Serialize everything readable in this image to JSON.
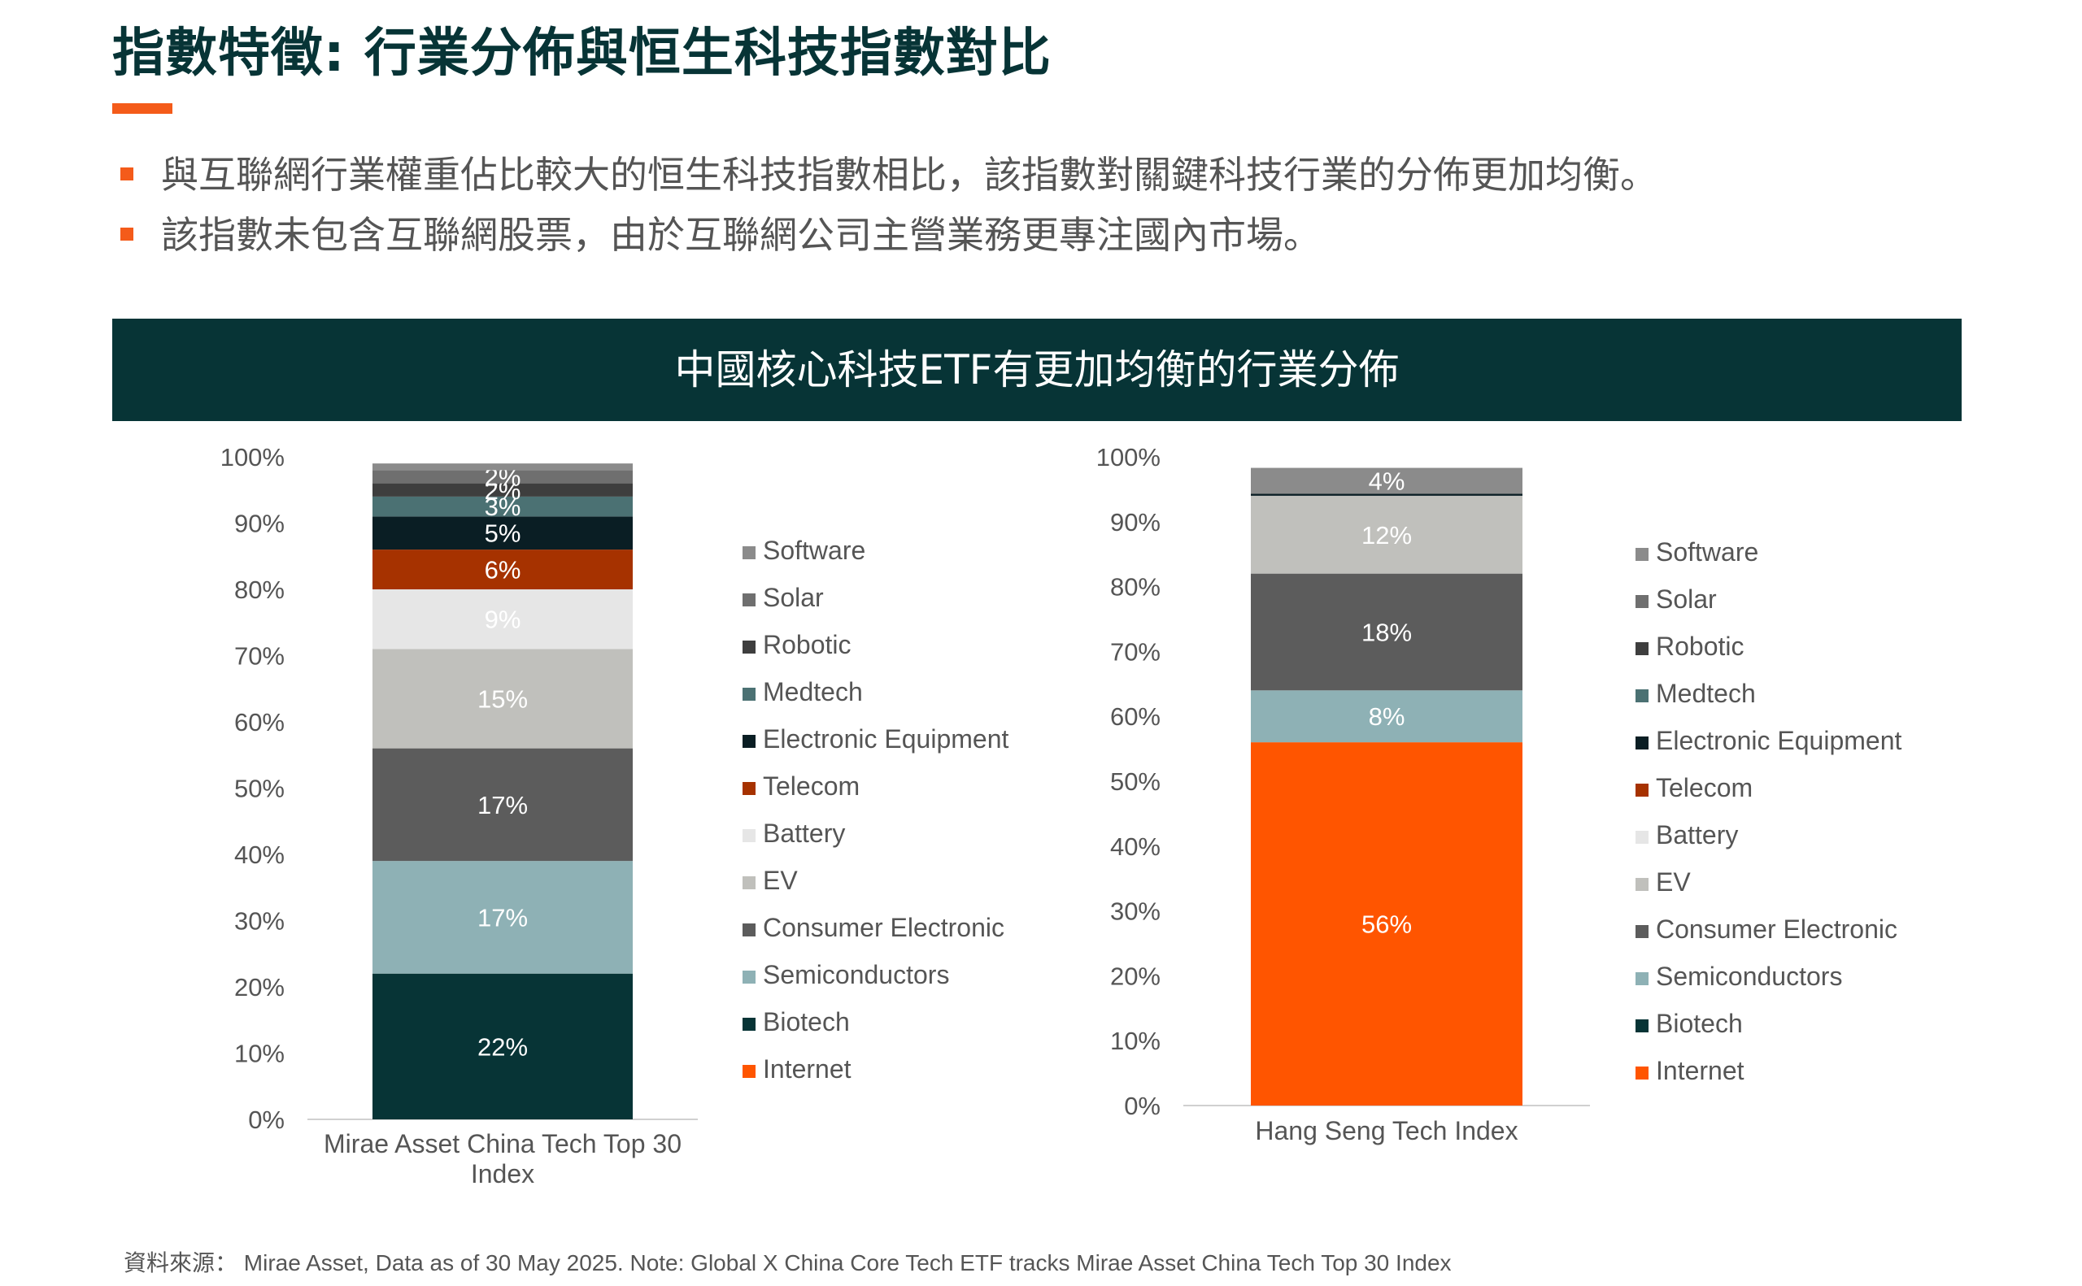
{
  "page": {
    "title": "指數特徵: 行業分佈與恒生科技指數對比",
    "bullets": [
      "與互聯網行業權重佔比較大的恒生科技指數相比，該指數對關鍵科技行業的分佈更加均衡。",
      "該指數未包含互聯網股票，由於互聯網公司主營業務更專注國內市場。"
    ],
    "banner": "中國核心科技ETF有更加均衡的行業分佈",
    "source": "資料來源： Mirae Asset, Data as of  30 May 2025. Note: Global X China Core Tech ETF tracks Mirae Asset China Tech Top 30 Index"
  },
  "colors": {
    "accent": "#f45b1a",
    "banner_bg": "#073436"
  },
  "chart_data": [
    {
      "type": "bar",
      "stacked": true,
      "categories": [
        "Mirae Asset China Tech Top 30 Index"
      ],
      "ylim": [
        0,
        100
      ],
      "y_ticks": [
        "0%",
        "10%",
        "20%",
        "30%",
        "40%",
        "50%",
        "60%",
        "70%",
        "80%",
        "90%",
        "100%"
      ],
      "series": [
        {
          "name": "Biotech",
          "values": [
            22
          ],
          "label": "22%",
          "color": "#073436"
        },
        {
          "name": "Semiconductors",
          "values": [
            17
          ],
          "label": "17%",
          "color": "#8eb1b5"
        },
        {
          "name": "Consumer Electronic",
          "values": [
            17
          ],
          "label": "17%",
          "color": "#5c5c5c"
        },
        {
          "name": "EV",
          "values": [
            15
          ],
          "label": "15%",
          "color": "#c0c0bc"
        },
        {
          "name": "Battery",
          "values": [
            9
          ],
          "label": "9%",
          "color": "#e6e6e6"
        },
        {
          "name": "Telecom",
          "values": [
            6
          ],
          "label": "6%",
          "color": "#a63200"
        },
        {
          "name": "Electronic Equipment",
          "values": [
            5
          ],
          "label": "5%",
          "color": "#0a1e24"
        },
        {
          "name": "Medtech",
          "values": [
            3
          ],
          "label": "3%",
          "color": "#4b7173"
        },
        {
          "name": "Robotic",
          "values": [
            2
          ],
          "label": "2%",
          "color": "#3e3e3e"
        },
        {
          "name": "Solar",
          "values": [
            2
          ],
          "label": "2%",
          "color": "#6f6f6f"
        },
        {
          "name": "Software",
          "values": [
            1
          ],
          "label": "",
          "color": "#8b8b8b"
        }
      ],
      "legend": [
        "Software",
        "Solar",
        "Robotic",
        "Medtech",
        "Electronic Equipment",
        "Telecom",
        "Battery",
        "EV",
        "Consumer Electronic",
        "Semiconductors",
        "Biotech",
        "Internet"
      ],
      "legend_position": "right"
    },
    {
      "type": "bar",
      "stacked": true,
      "categories": [
        "Hang Seng Tech Index"
      ],
      "ylim": [
        0,
        100
      ],
      "y_ticks": [
        "0%",
        "10%",
        "20%",
        "30%",
        "40%",
        "50%",
        "60%",
        "70%",
        "80%",
        "90%",
        "100%"
      ],
      "series": [
        {
          "name": "Internet",
          "values": [
            56
          ],
          "label": "56%",
          "color": "#ff5500"
        },
        {
          "name": "Semiconductors",
          "values": [
            8
          ],
          "label": "8%",
          "color": "#8eb1b5"
        },
        {
          "name": "Consumer Electronic",
          "values": [
            18
          ],
          "label": "18%",
          "color": "#5c5c5c"
        },
        {
          "name": "EV",
          "values": [
            12
          ],
          "label": "12%",
          "color": "#c0c0bc"
        },
        {
          "name": "Electronic Equipment",
          "values": [
            0.3
          ],
          "label": "",
          "color": "#0a1e24"
        },
        {
          "name": "Software",
          "values": [
            4
          ],
          "label": "4%",
          "color": "#8b8b8b"
        }
      ],
      "legend": [
        "Software",
        "Solar",
        "Robotic",
        "Medtech",
        "Electronic Equipment",
        "Telecom",
        "Battery",
        "EV",
        "Consumer Electronic",
        "Semiconductors",
        "Biotech",
        "Internet"
      ],
      "legend_position": "right"
    }
  ],
  "legend_colors": {
    "Software": "#8b8b8b",
    "Solar": "#6f6f6f",
    "Robotic": "#3e3e3e",
    "Medtech": "#4b7173",
    "Electronic Equipment": "#0a1e24",
    "Telecom": "#a63200",
    "Battery": "#e6e6e6",
    "EV": "#c0c0bc",
    "Consumer Electronic": "#5c5c5c",
    "Semiconductors": "#8eb1b5",
    "Biotech": "#073436",
    "Internet": "#ff5500"
  }
}
